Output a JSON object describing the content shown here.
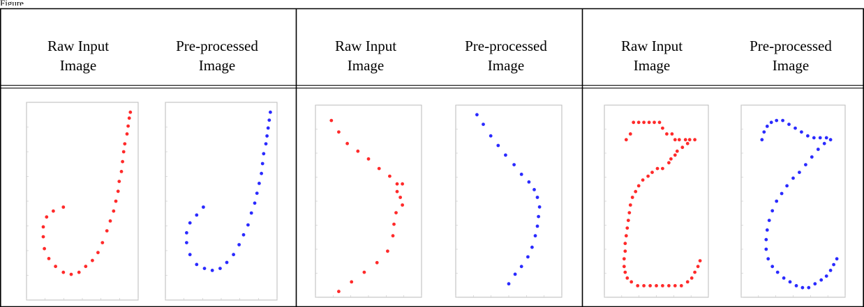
{
  "caption": "Figure",
  "headers": [
    {
      "line1": "Raw Input",
      "line2": "Image"
    },
    {
      "line1": "Pre-processed",
      "line2": "Image"
    },
    {
      "line1": "Raw Input",
      "line2": "Image"
    },
    {
      "line1": "Pre-processed",
      "line2": "Image"
    },
    {
      "line1": "Raw Input",
      "line2": "Image"
    },
    {
      "line1": "Pre-processed",
      "line2": "Image"
    }
  ],
  "colors": {
    "raw": "#ff2a2a",
    "processed": "#2a2aff",
    "border": "#000000"
  },
  "chart_data": [
    {
      "type": "scatter",
      "panel": "set1-raw",
      "color": "raw",
      "points": [
        [
          0.93,
          0.05
        ],
        [
          0.92,
          0.08
        ],
        [
          0.91,
          0.12
        ],
        [
          0.9,
          0.16
        ],
        [
          0.88,
          0.21
        ],
        [
          0.87,
          0.25
        ],
        [
          0.86,
          0.3
        ],
        [
          0.85,
          0.35
        ],
        [
          0.83,
          0.4
        ],
        [
          0.82,
          0.45
        ],
        [
          0.8,
          0.5
        ],
        [
          0.78,
          0.55
        ],
        [
          0.75,
          0.6
        ],
        [
          0.72,
          0.65
        ],
        [
          0.68,
          0.71
        ],
        [
          0.64,
          0.76
        ],
        [
          0.59,
          0.8
        ],
        [
          0.53,
          0.83
        ],
        [
          0.47,
          0.86
        ],
        [
          0.4,
          0.87
        ],
        [
          0.33,
          0.86
        ],
        [
          0.26,
          0.83
        ],
        [
          0.2,
          0.79
        ],
        [
          0.16,
          0.74
        ],
        [
          0.15,
          0.68
        ],
        [
          0.15,
          0.63
        ],
        [
          0.18,
          0.58
        ],
        [
          0.24,
          0.55
        ],
        [
          0.33,
          0.53
        ]
      ]
    },
    {
      "type": "scatter",
      "panel": "set1-processed",
      "color": "processed",
      "points": [
        [
          0.94,
          0.05
        ],
        [
          0.93,
          0.09
        ],
        [
          0.92,
          0.13
        ],
        [
          0.91,
          0.17
        ],
        [
          0.9,
          0.21
        ],
        [
          0.88,
          0.26
        ],
        [
          0.87,
          0.31
        ],
        [
          0.86,
          0.36
        ],
        [
          0.84,
          0.41
        ],
        [
          0.82,
          0.46
        ],
        [
          0.8,
          0.51
        ],
        [
          0.77,
          0.56
        ],
        [
          0.74,
          0.62
        ],
        [
          0.7,
          0.67
        ],
        [
          0.66,
          0.72
        ],
        [
          0.61,
          0.77
        ],
        [
          0.55,
          0.81
        ],
        [
          0.49,
          0.84
        ],
        [
          0.42,
          0.85
        ],
        [
          0.35,
          0.84
        ],
        [
          0.28,
          0.82
        ],
        [
          0.22,
          0.77
        ],
        [
          0.19,
          0.71
        ],
        [
          0.19,
          0.66
        ],
        [
          0.22,
          0.61
        ],
        [
          0.28,
          0.57
        ],
        [
          0.34,
          0.53
        ]
      ]
    },
    {
      "type": "scatter",
      "panel": "set2-raw",
      "color": "raw",
      "points": [
        [
          0.15,
          0.08
        ],
        [
          0.22,
          0.14
        ],
        [
          0.3,
          0.2
        ],
        [
          0.4,
          0.24
        ],
        [
          0.5,
          0.28
        ],
        [
          0.6,
          0.33
        ],
        [
          0.7,
          0.37
        ],
        [
          0.77,
          0.41
        ],
        [
          0.82,
          0.41
        ],
        [
          0.77,
          0.45
        ],
        [
          0.8,
          0.48
        ],
        [
          0.82,
          0.52
        ],
        [
          0.76,
          0.56
        ],
        [
          0.74,
          0.62
        ],
        [
          0.73,
          0.68
        ],
        [
          0.68,
          0.76
        ],
        [
          0.58,
          0.82
        ],
        [
          0.46,
          0.87
        ],
        [
          0.34,
          0.92
        ],
        [
          0.22,
          0.97
        ]
      ]
    },
    {
      "type": "scatter",
      "panel": "set2-processed",
      "color": "processed",
      "points": [
        [
          0.2,
          0.05
        ],
        [
          0.26,
          0.1
        ],
        [
          0.33,
          0.16
        ],
        [
          0.4,
          0.21
        ],
        [
          0.47,
          0.26
        ],
        [
          0.55,
          0.31
        ],
        [
          0.62,
          0.36
        ],
        [
          0.69,
          0.4
        ],
        [
          0.74,
          0.44
        ],
        [
          0.77,
          0.48
        ],
        [
          0.79,
          0.53
        ],
        [
          0.78,
          0.58
        ],
        [
          0.77,
          0.63
        ],
        [
          0.75,
          0.68
        ],
        [
          0.72,
          0.74
        ],
        [
          0.68,
          0.79
        ],
        [
          0.62,
          0.84
        ],
        [
          0.56,
          0.88
        ],
        [
          0.5,
          0.93
        ]
      ]
    },
    {
      "type": "scatter",
      "panel": "set3-raw",
      "color": "raw",
      "points": [
        [
          0.28,
          0.09
        ],
        [
          0.33,
          0.09
        ],
        [
          0.38,
          0.09
        ],
        [
          0.43,
          0.09
        ],
        [
          0.48,
          0.09
        ],
        [
          0.53,
          0.09
        ],
        [
          0.56,
          0.12
        ],
        [
          0.6,
          0.15
        ],
        [
          0.65,
          0.15
        ],
        [
          0.68,
          0.18
        ],
        [
          0.72,
          0.18
        ],
        [
          0.78,
          0.18
        ],
        [
          0.82,
          0.18
        ],
        [
          0.87,
          0.18
        ],
        [
          0.8,
          0.2
        ],
        [
          0.75,
          0.22
        ],
        [
          0.7,
          0.24
        ],
        [
          0.68,
          0.26
        ],
        [
          0.64,
          0.28
        ],
        [
          0.62,
          0.3
        ],
        [
          0.56,
          0.33
        ],
        [
          0.51,
          0.33
        ],
        [
          0.46,
          0.35
        ],
        [
          0.42,
          0.37
        ],
        [
          0.37,
          0.39
        ],
        [
          0.33,
          0.42
        ],
        [
          0.3,
          0.45
        ],
        [
          0.27,
          0.48
        ],
        [
          0.25,
          0.52
        ],
        [
          0.24,
          0.56
        ],
        [
          0.23,
          0.6
        ],
        [
          0.22,
          0.64
        ],
        [
          0.21,
          0.68
        ],
        [
          0.2,
          0.72
        ],
        [
          0.2,
          0.76
        ],
        [
          0.19,
          0.8
        ],
        [
          0.19,
          0.84
        ],
        [
          0.2,
          0.87
        ],
        [
          0.22,
          0.9
        ],
        [
          0.26,
          0.92
        ],
        [
          0.32,
          0.94
        ],
        [
          0.38,
          0.94
        ],
        [
          0.44,
          0.94
        ],
        [
          0.5,
          0.94
        ],
        [
          0.56,
          0.94
        ],
        [
          0.62,
          0.94
        ],
        [
          0.68,
          0.94
        ],
        [
          0.74,
          0.94
        ],
        [
          0.8,
          0.92
        ],
        [
          0.84,
          0.9
        ],
        [
          0.87,
          0.87
        ],
        [
          0.9,
          0.84
        ],
        [
          0.92,
          0.81
        ],
        [
          0.25,
          0.15
        ],
        [
          0.21,
          0.18
        ]
      ]
    },
    {
      "type": "scatter",
      "panel": "set3-processed",
      "color": "processed",
      "points": [
        [
          0.2,
          0.18
        ],
        [
          0.22,
          0.14
        ],
        [
          0.25,
          0.11
        ],
        [
          0.29,
          0.09
        ],
        [
          0.34,
          0.08
        ],
        [
          0.4,
          0.08
        ],
        [
          0.46,
          0.1
        ],
        [
          0.52,
          0.12
        ],
        [
          0.58,
          0.14
        ],
        [
          0.64,
          0.16
        ],
        [
          0.7,
          0.17
        ],
        [
          0.76,
          0.17
        ],
        [
          0.82,
          0.17
        ],
        [
          0.86,
          0.18
        ],
        [
          0.8,
          0.2
        ],
        [
          0.74,
          0.23
        ],
        [
          0.68,
          0.27
        ],
        [
          0.62,
          0.31
        ],
        [
          0.56,
          0.35
        ],
        [
          0.5,
          0.38
        ],
        [
          0.44,
          0.42
        ],
        [
          0.39,
          0.46
        ],
        [
          0.34,
          0.5
        ],
        [
          0.3,
          0.55
        ],
        [
          0.27,
          0.6
        ],
        [
          0.25,
          0.65
        ],
        [
          0.24,
          0.7
        ],
        [
          0.24,
          0.75
        ],
        [
          0.26,
          0.8
        ],
        [
          0.3,
          0.84
        ],
        [
          0.35,
          0.87
        ],
        [
          0.41,
          0.9
        ],
        [
          0.47,
          0.92
        ],
        [
          0.53,
          0.94
        ],
        [
          0.59,
          0.95
        ],
        [
          0.65,
          0.95
        ],
        [
          0.71,
          0.93
        ],
        [
          0.77,
          0.91
        ],
        [
          0.82,
          0.89
        ],
        [
          0.86,
          0.86
        ],
        [
          0.89,
          0.83
        ],
        [
          0.92,
          0.8
        ]
      ]
    }
  ]
}
